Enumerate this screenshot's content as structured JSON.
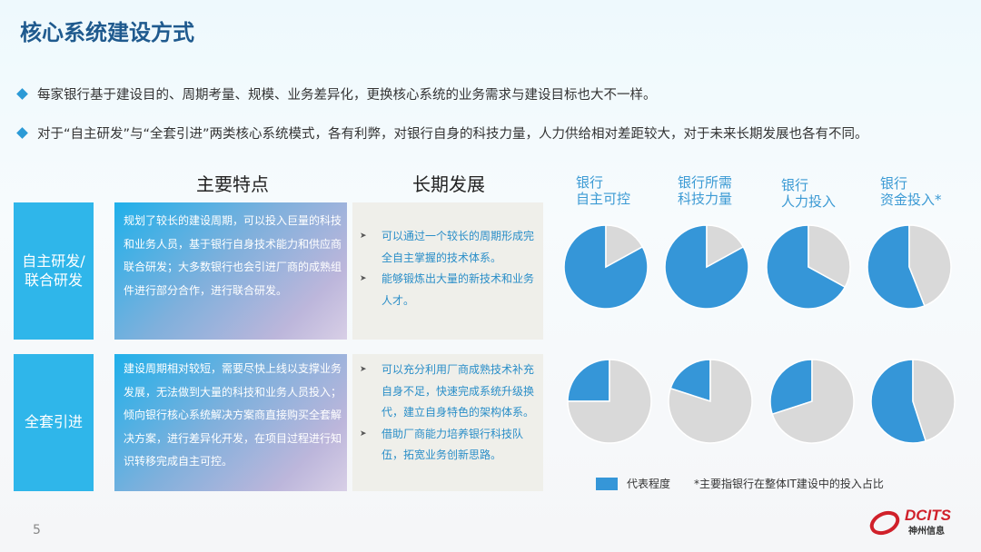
{
  "title": "核心系统建设方式",
  "bullets": [
    "每家银行基于建设目的、周期考量、规模、业务差异化，更换核心系统的业务需求与建设目标也大不一样。",
    "对于“自主研发”与“全套引进”两类核心系统模式，各有利弊，对银行自身的科技力量，人力供给相对差距较大，对于未来长期发展也各有不同。"
  ],
  "columns": [
    "主要特点",
    "长期发展"
  ],
  "rows": [
    {
      "label": "自主研发/联合研发",
      "features": "规划了较长的建设周期，可以投入巨量的科技和业务人员，基于银行自身技术能力和供应商联合研发；大多数银行也会引进厂商的成熟组件进行部分合作，进行联合研发。",
      "development": [
        "可以通过一个较长的周期形成完全自主掌握的技术体系。",
        "能够锻炼出大量的新技术和业务人才。"
      ]
    },
    {
      "label": "全套引进",
      "features": "建设周期相对较短，需要尽快上线以支撑业务发展，无法做到大量的科技和业务人员投入；倾向银行核心系统解决方案商直接购买全套解决方案，进行差异化开发，在项目过程进行知识转移完成自主可控。",
      "development": [
        "可以充分利用厂商成熟技术补充自身不足，快速完成系统升级换代，建立自身特色的架构体系。",
        "借助厂商能力培养银行科技队伍，拓宽业务创新思路。"
      ]
    }
  ],
  "chart_data": {
    "type": "pie",
    "categories": [
      [
        "银行",
        "自主可控"
      ],
      [
        "银行所需",
        "科技力量"
      ],
      [
        "银行",
        "人力投入"
      ],
      [
        "银行",
        "资金投入*"
      ]
    ],
    "series": [
      {
        "row": "自主研发/联合研发",
        "values": [
          83,
          83,
          67,
          56
        ]
      },
      {
        "row": "全套引进",
        "values": [
          25,
          20,
          30,
          55
        ]
      }
    ],
    "colors": {
      "value": "#3596d8",
      "remainder": "#d9d9d9"
    },
    "legend": "代表程度",
    "footnote": "*主要指银行在整体IT建设中的投入占比"
  },
  "page_number": "5",
  "logo": {
    "text": "DCITS",
    "subtext": "神州信息"
  }
}
